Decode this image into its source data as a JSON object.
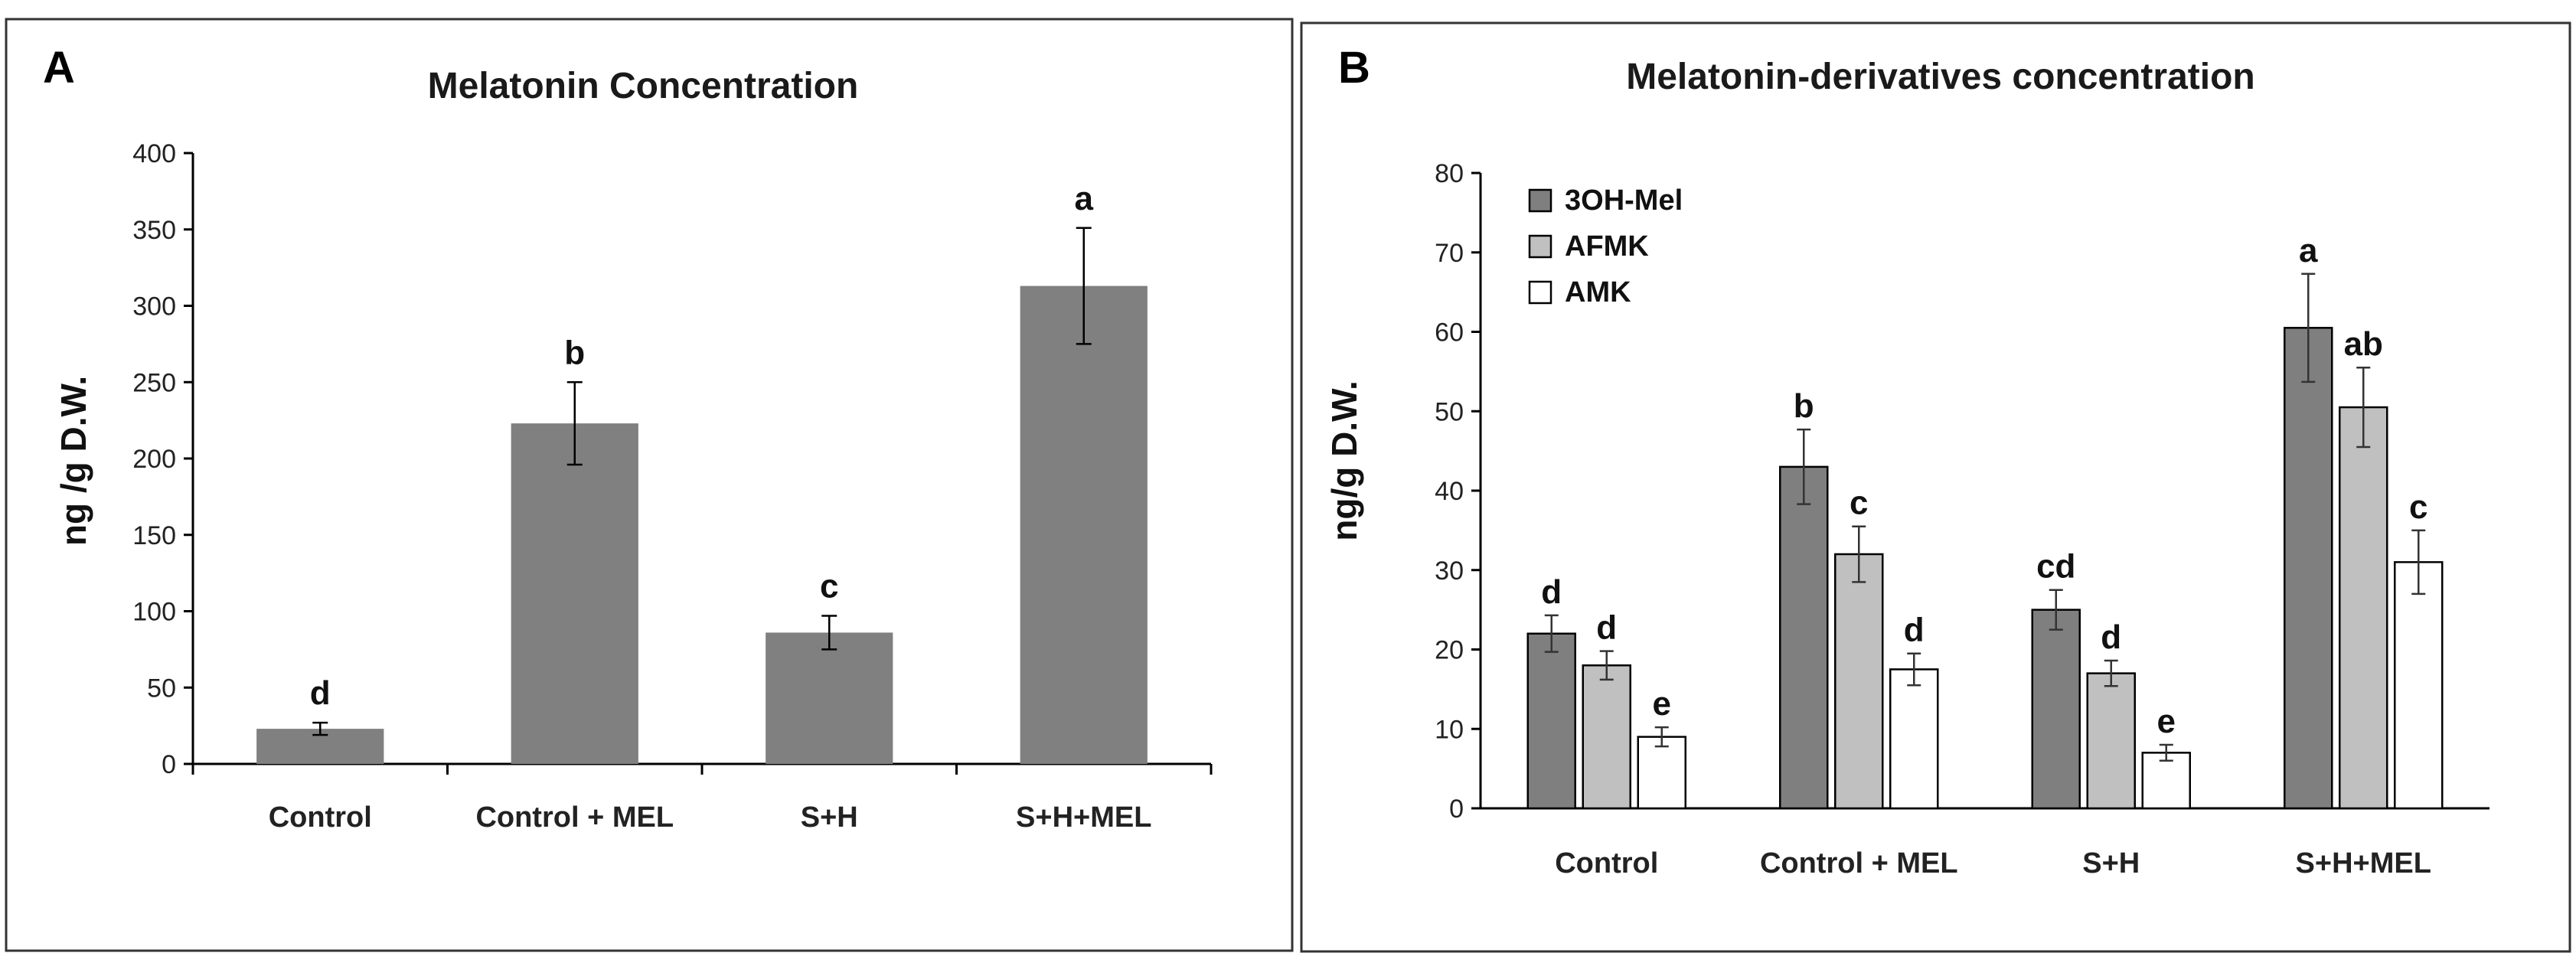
{
  "chart_data": [
    {
      "panel": "A",
      "type": "bar",
      "title": "Melatonin Concentration",
      "ylabel": "ng /g D.W.",
      "xlabel": "",
      "ylim": [
        0,
        400
      ],
      "yticks": [
        0,
        50,
        100,
        150,
        200,
        250,
        300,
        350,
        400
      ],
      "categories": [
        "Control",
        "Control + MEL",
        "S+H",
        "S+H+MEL"
      ],
      "values": [
        23,
        223,
        86,
        313
      ],
      "errors": [
        4,
        27,
        11,
        38
      ],
      "significance": [
        "d",
        "b",
        "c",
        "a"
      ],
      "colors": [
        "#808080"
      ],
      "grid": false
    },
    {
      "panel": "B",
      "type": "bar",
      "title": "Melatonin-derivatives concentration",
      "ylabel": "ng/g D.W.",
      "xlabel": "",
      "ylim": [
        0,
        80
      ],
      "yticks": [
        0,
        10,
        20,
        30,
        40,
        50,
        60,
        70,
        80
      ],
      "categories": [
        "Control",
        "Control + MEL",
        "S+H",
        "S+H+MEL"
      ],
      "series": [
        {
          "name": "3OH-Mel",
          "values": [
            22,
            43,
            25,
            60.5
          ],
          "errors": [
            2.3,
            4.7,
            2.5,
            6.8
          ],
          "significance": [
            "d",
            "b",
            "cd",
            "a"
          ],
          "color": "#7f7f7f"
        },
        {
          "name": "AFMK",
          "values": [
            18,
            32,
            17,
            50.5
          ],
          "errors": [
            1.8,
            3.5,
            1.6,
            5.0
          ],
          "significance": [
            "d",
            "c",
            "d",
            "ab"
          ],
          "color": "#c0c0c0"
        },
        {
          "name": "AMK",
          "values": [
            9,
            17.5,
            7,
            31
          ],
          "errors": [
            1.2,
            2.0,
            1.0,
            4.0
          ],
          "significance": [
            "e",
            "d",
            "e",
            "c"
          ],
          "color": "#ffffff"
        }
      ],
      "legend_position": "top-left",
      "grid": false
    }
  ]
}
